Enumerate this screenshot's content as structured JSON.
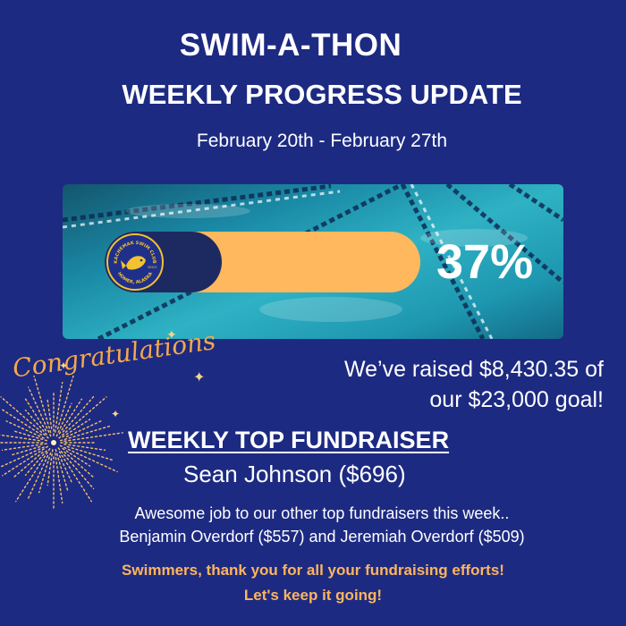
{
  "header": {
    "title": "SWIM-A-THON",
    "subtitle": "WEEKLY PROGRESS UPDATE",
    "date_range": "February 20th - February 27th"
  },
  "progress": {
    "percent_label": "37%",
    "fraction": 0.37,
    "fill_color": "#1d2a62",
    "track_color": "#ffb85e"
  },
  "logo": {
    "top_text": "KACHEMAK SWIM CLUB",
    "bottom_text": "HOMER, ALASKA",
    "since_text": "SINCE",
    "icon": "fish-icon"
  },
  "raised": {
    "line1": "We’ve raised $8,430.35 of",
    "line2": "our $23,000 goal!"
  },
  "congrats_text": "Congratulations",
  "top_fundraiser": {
    "heading": "WEEKLY TOP FUNDRAISER",
    "name": "Sean Johnson  ($696)"
  },
  "others": {
    "line1": "Awesome job to our other top fundraisers this week..",
    "line2": "Benjamin Overdorf ($557) and Jeremiah Overdorf ($509)"
  },
  "thanks": {
    "line1": "Swimmers, thank you for all your fundraising efforts!",
    "line2": "Let's keep it going!"
  },
  "colors": {
    "background": "#1d2a82",
    "accent": "#ffb55c"
  }
}
